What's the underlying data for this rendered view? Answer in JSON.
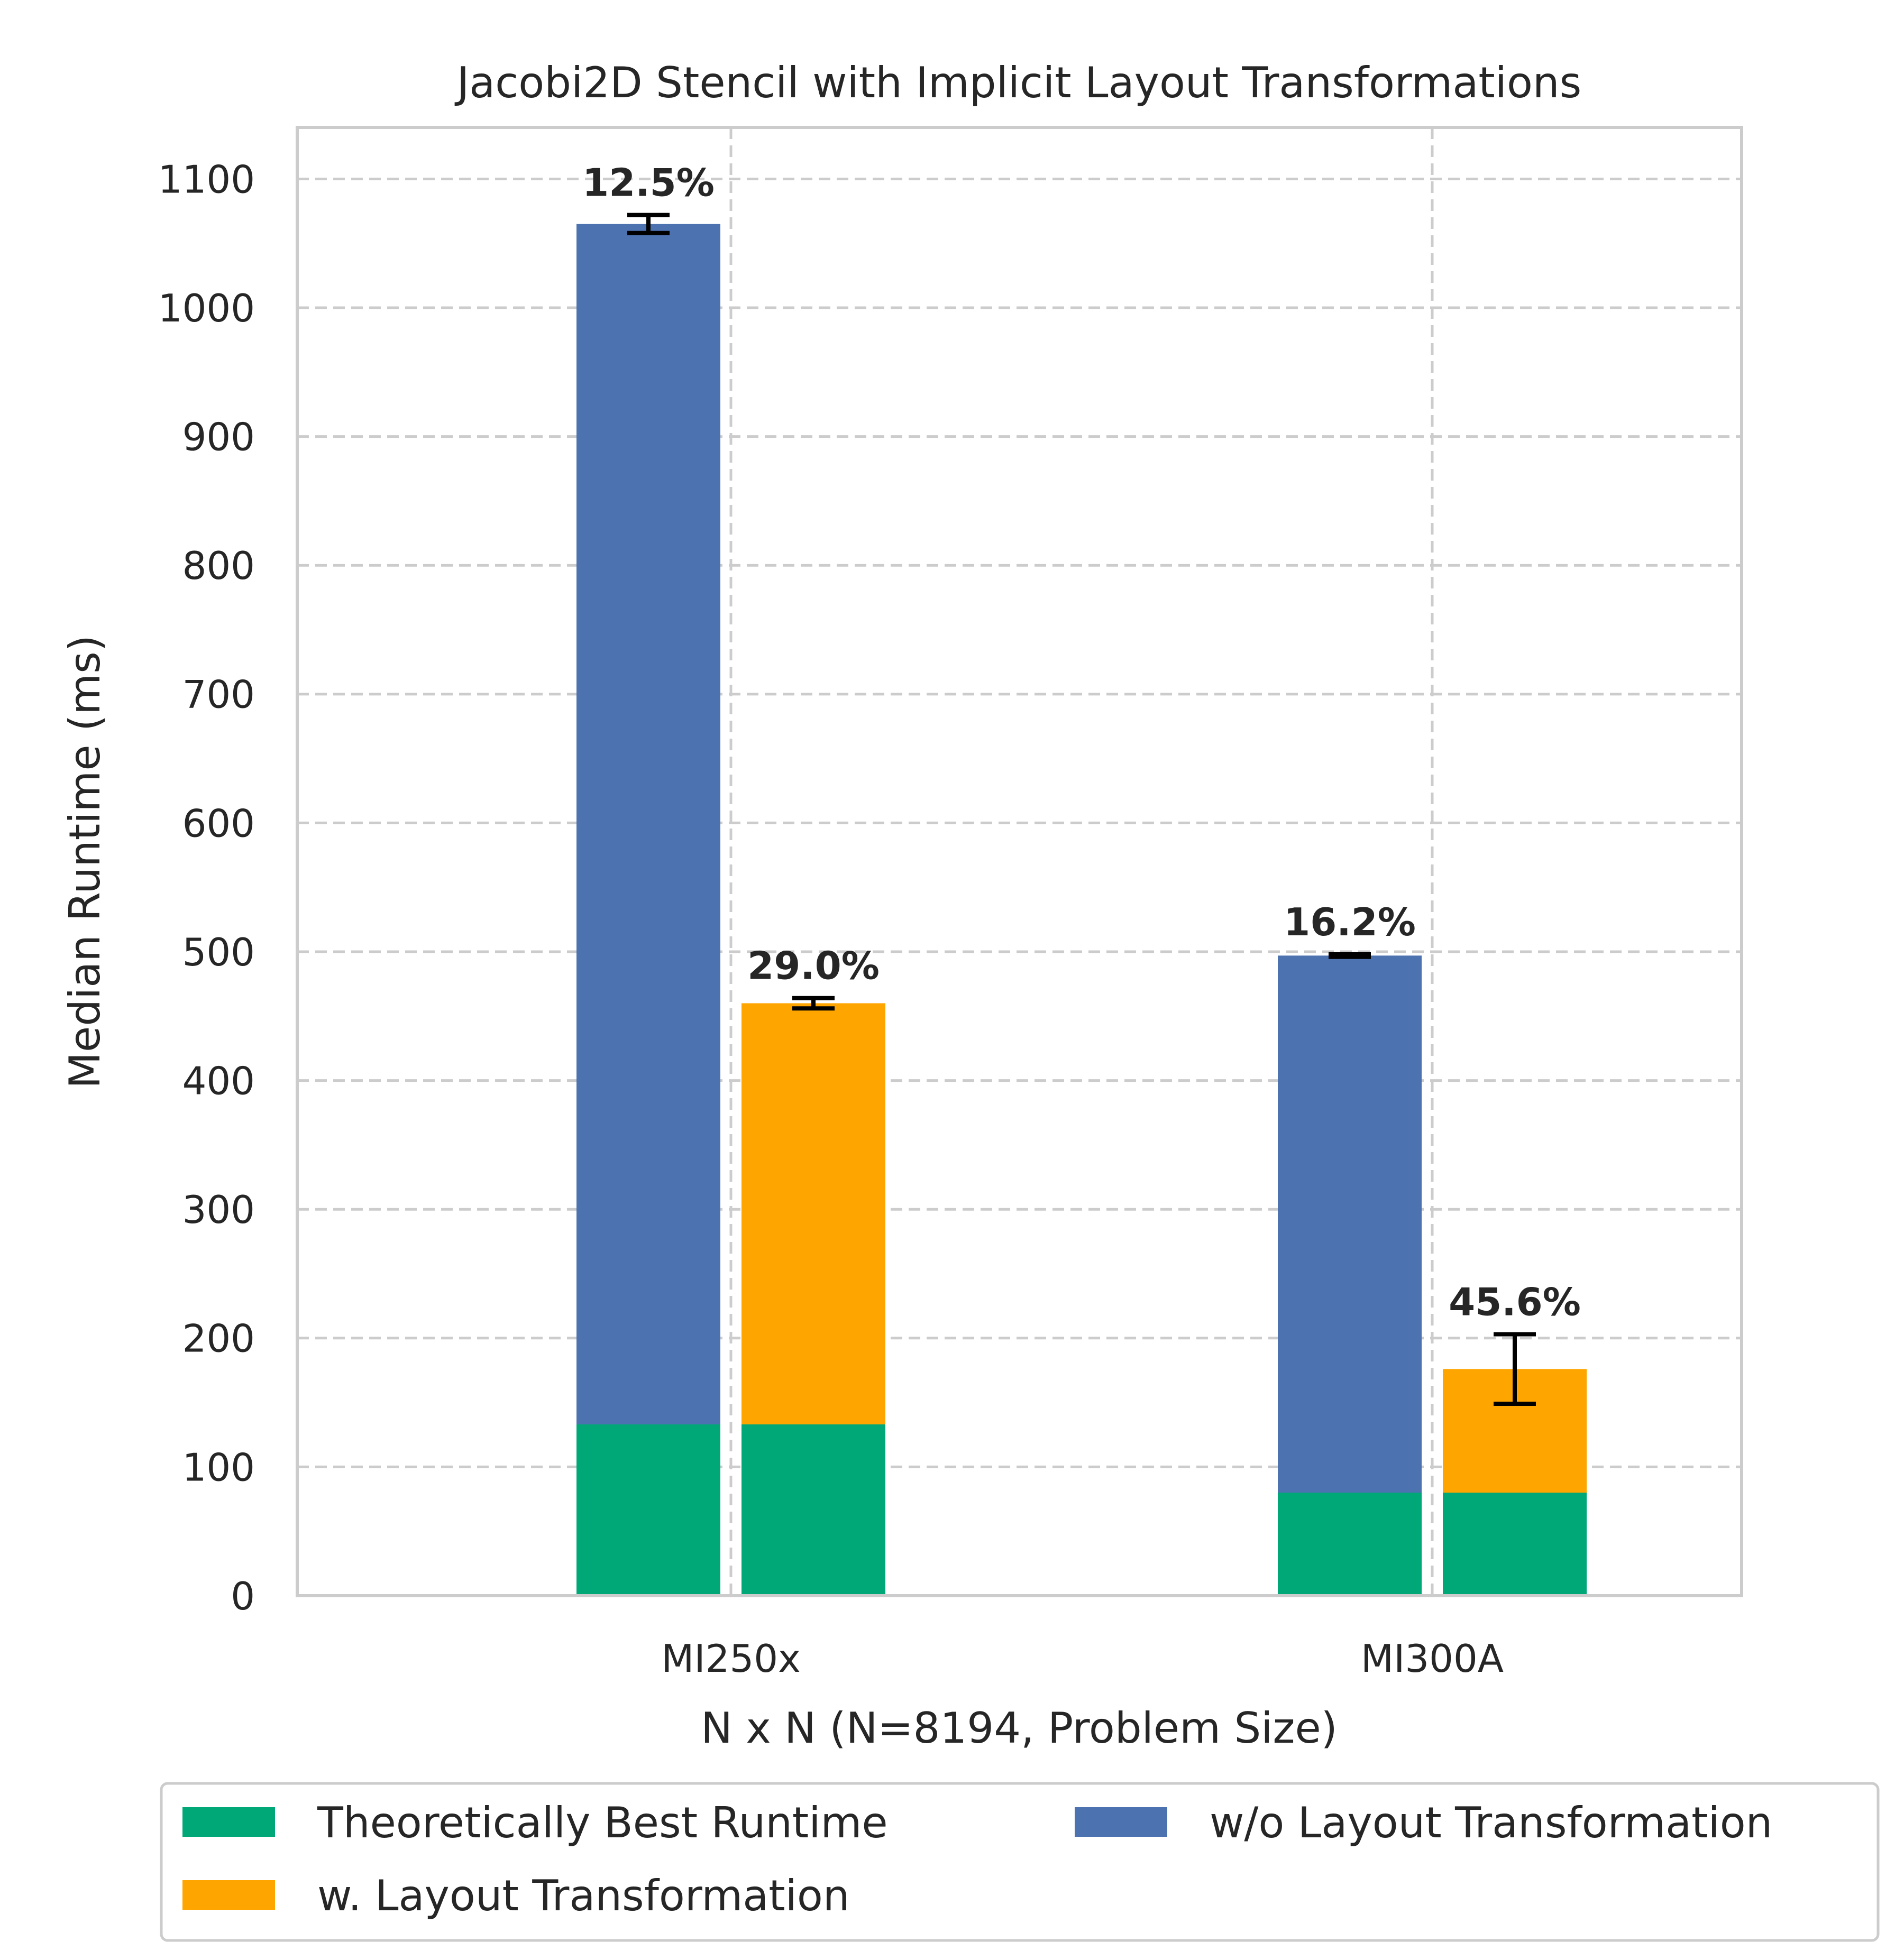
{
  "chart_data": {
    "type": "bar",
    "title": "Jacobi2D Stencil with Implicit Layout Transformations",
    "xlabel": "N x N (N=8194, Problem Size)",
    "ylabel": "Median Runtime (ms)",
    "ylim": [
      0,
      1140
    ],
    "yticks": [
      0,
      100,
      200,
      300,
      400,
      500,
      600,
      700,
      800,
      900,
      1000,
      1100
    ],
    "grid": true,
    "legend_position": "bottom",
    "categories": [
      "MI250x",
      "MI300A"
    ],
    "series": [
      {
        "name": "Theoretically Best Runtime",
        "color": "#00a878",
        "values": [
          133,
          80
        ]
      },
      {
        "name": "w/o Layout Transformation",
        "color": "#4c72b0",
        "values": [
          1065,
          497
        ],
        "errors": [
          7,
          1
        ]
      },
      {
        "name": "w. Layout Transformation",
        "color": "#ffa500",
        "values": [
          460,
          176
        ],
        "errors": [
          4,
          27
        ]
      }
    ],
    "annotations": [
      {
        "category": "MI250x",
        "series": "w/o Layout Transformation",
        "text": "12.5%"
      },
      {
        "category": "MI250x",
        "series": "w. Layout Transformation",
        "text": "29.0%"
      },
      {
        "category": "MI300A",
        "series": "w/o Layout Transformation",
        "text": "16.2%"
      },
      {
        "category": "MI300A",
        "series": "w. Layout Transformation",
        "text": "45.6%"
      }
    ]
  }
}
